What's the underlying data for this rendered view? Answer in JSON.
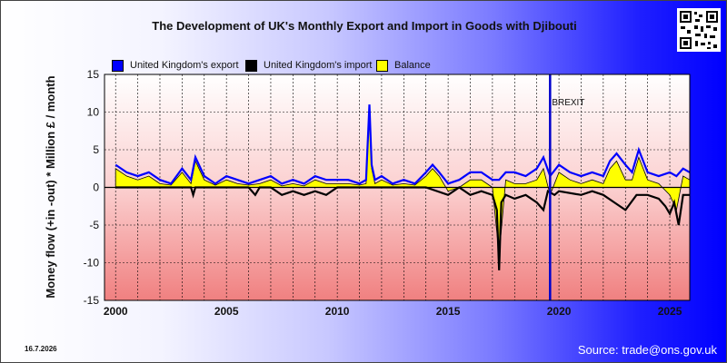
{
  "title": "The Development of UK's Monthly Export and Import in Goods with Djibouti",
  "date_stamp": "16.7.2026",
  "source": "Source: trade@ons.gov.uk",
  "colors": {
    "export": "#0000ff",
    "import": "#000000",
    "balance": "#ffff00",
    "brexit_line": "#0000cc"
  },
  "chart_data": {
    "type": "line",
    "title": "The Development of UK's Monthly Export and Import in Goods with Djibouti",
    "xlabel": "",
    "ylabel": "Money flow (+in -out) * Million £ / month",
    "xlim": [
      1999.5,
      2025.9
    ],
    "ylim": [
      -15,
      15
    ],
    "x_ticks": [
      2000,
      2005,
      2010,
      2015,
      2020,
      2025
    ],
    "y_ticks": [
      -15,
      -10,
      -5,
      0,
      5,
      10,
      15
    ],
    "grid": true,
    "legend_position": "top-left",
    "annotations": [
      {
        "label": "BREXIT",
        "x": 2019.6
      }
    ],
    "series": [
      {
        "name": "United Kingdom's export",
        "x": [
          2000,
          2000.5,
          2001,
          2001.5,
          2002,
          2002.5,
          2003,
          2003.4,
          2003.6,
          2004,
          2004.5,
          2005,
          2005.5,
          2006,
          2006.5,
          2007,
          2007.5,
          2008,
          2008.5,
          2009,
          2009.5,
          2010,
          2010.5,
          2011,
          2011.3,
          2011.45,
          2011.55,
          2011.7,
          2012,
          2012.5,
          2013,
          2013.5,
          2014,
          2014.3,
          2014.6,
          2015,
          2015.5,
          2016,
          2016.5,
          2017,
          2017.3,
          2017.6,
          2018,
          2018.5,
          2019,
          2019.3,
          2019.6,
          2020,
          2020.5,
          2021,
          2021.5,
          2022,
          2022.3,
          2022.6,
          2023,
          2023.3,
          2023.6,
          2024,
          2024.5,
          2025,
          2025.3,
          2025.6,
          2025.9
        ],
        "values": [
          3,
          2,
          1.5,
          2,
          1,
          0.5,
          2.5,
          1,
          4,
          1.5,
          0.5,
          1.5,
          1,
          0.5,
          1,
          1.5,
          0.5,
          1,
          0.5,
          1.5,
          1,
          1,
          1,
          0.5,
          1,
          11,
          3,
          1,
          1.5,
          0.5,
          1,
          0.5,
          2,
          3,
          2,
          0.5,
          1,
          2,
          2,
          1,
          1,
          2,
          2,
          1.5,
          2.5,
          4,
          1.5,
          3,
          2,
          1.5,
          2,
          1.5,
          3.5,
          4.5,
          3,
          2,
          5,
          2,
          1.5,
          2,
          1.5,
          2.5,
          2
        ]
      },
      {
        "name": "United Kingdom's import",
        "x": [
          2000,
          2003.4,
          2003.5,
          2003.6,
          2004,
          2006,
          2006.3,
          2006.5,
          2007,
          2007.5,
          2008,
          2008.5,
          2009,
          2009.5,
          2010,
          2014,
          2015,
          2015.5,
          2016,
          2016.5,
          2017,
          2017.2,
          2017.3,
          2017.4,
          2017.6,
          2018,
          2018.5,
          2019,
          2019.3,
          2019.5,
          2019.8,
          2020,
          2021,
          2021.5,
          2022,
          2022.5,
          2023,
          2023.5,
          2024,
          2024.5,
          2024.8,
          2025,
          2025.2,
          2025.4,
          2025.6,
          2025.9
        ],
        "values": [
          0,
          0,
          -1,
          0,
          0,
          0,
          -1,
          0,
          0,
          -1,
          -0.5,
          -1,
          -0.5,
          -1,
          0,
          0,
          -1,
          0,
          -1,
          -0.5,
          -1,
          -3,
          -11,
          -2,
          -1,
          -1.5,
          -1,
          -2,
          -3,
          -0.5,
          -1,
          -0.5,
          -1,
          -0.5,
          -1,
          -2,
          -3,
          -1,
          -1,
          -1.5,
          -2.5,
          -3.5,
          -2,
          -5,
          -1,
          -1
        ]
      },
      {
        "name": "Balance",
        "x": [
          2000,
          2000.5,
          2001,
          2001.5,
          2002,
          2002.5,
          2003,
          2003.4,
          2003.6,
          2004,
          2004.5,
          2005,
          2005.5,
          2006,
          2006.5,
          2007,
          2007.5,
          2008,
          2008.5,
          2009,
          2009.5,
          2010,
          2010.5,
          2011,
          2011.3,
          2011.45,
          2011.55,
          2011.7,
          2012,
          2012.5,
          2013,
          2013.5,
          2014,
          2014.3,
          2014.6,
          2015,
          2015.5,
          2016,
          2016.5,
          2017,
          2017.3,
          2017.6,
          2018,
          2018.5,
          2019,
          2019.3,
          2019.6,
          2020,
          2020.5,
          2021,
          2021.5,
          2022,
          2022.3,
          2022.6,
          2023,
          2023.3,
          2023.6,
          2024,
          2024.5,
          2025,
          2025.3,
          2025.6,
          2025.9
        ],
        "values": [
          2.5,
          1.5,
          1,
          1.5,
          0.5,
          0.3,
          2,
          0.5,
          3.5,
          1,
          0.3,
          1,
          0.5,
          0.3,
          0.5,
          1,
          0.2,
          0.5,
          0.2,
          1,
          0.5,
          0.5,
          0.5,
          0.3,
          0.5,
          10.5,
          2.5,
          0.5,
          1,
          0.3,
          0.5,
          0.3,
          1.5,
          2.5,
          1.5,
          -0.5,
          0,
          1,
          1,
          0,
          -9,
          1,
          0.5,
          0.5,
          1,
          2.5,
          -1,
          2,
          1,
          0.5,
          1,
          0.5,
          2.5,
          3.5,
          1,
          1,
          4,
          1,
          0.5,
          -1,
          -3,
          1.5,
          1
        ]
      }
    ]
  }
}
